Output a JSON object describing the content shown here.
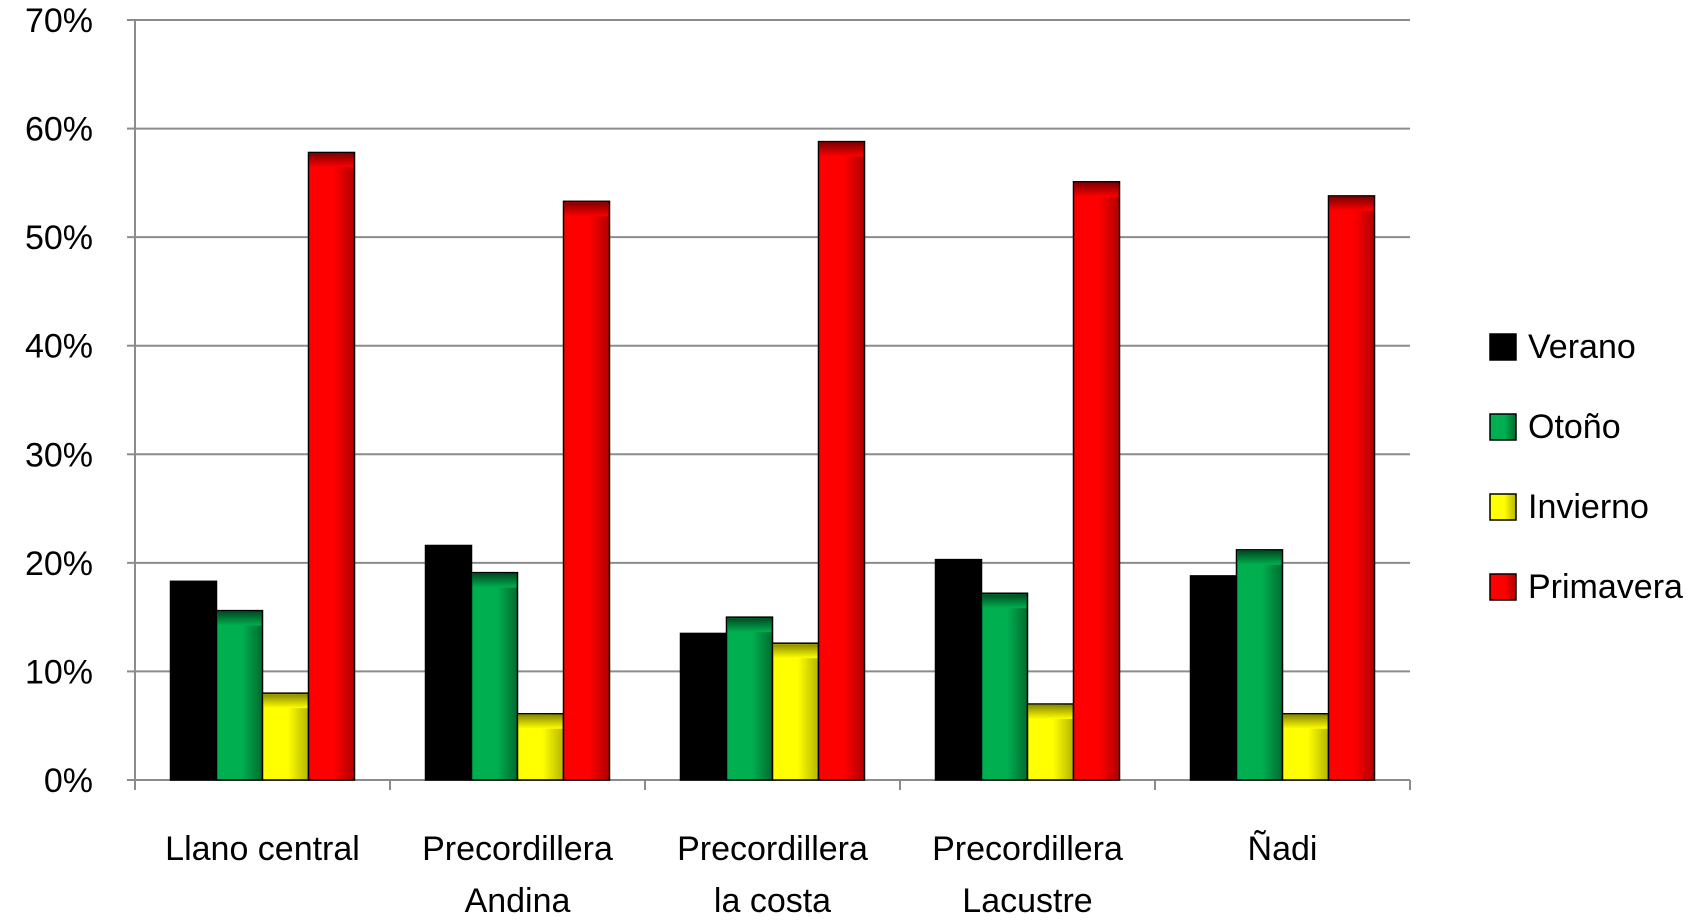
{
  "chart_data": {
    "type": "bar",
    "title": "",
    "xlabel": "",
    "ylabel": "",
    "ylim": [
      0,
      70
    ],
    "yticks": [
      "0%",
      "10%",
      "20%",
      "30%",
      "40%",
      "50%",
      "60%",
      "70%"
    ],
    "ytick_values": [
      0,
      10,
      20,
      30,
      40,
      50,
      60,
      70
    ],
    "grid": true,
    "legend_position": "right",
    "categories": [
      [
        "Llano central"
      ],
      [
        "Precordillera",
        "Andina"
      ],
      [
        "Precordillera",
        "la costa"
      ],
      [
        "Precordillera",
        "Lacustre"
      ],
      [
        "Ñadi"
      ]
    ],
    "series": [
      {
        "name": "Verano",
        "color": "#000000",
        "values": [
          18.3,
          21.6,
          13.5,
          20.3,
          18.8
        ]
      },
      {
        "name": "Otoño",
        "color": "#00b050",
        "values": [
          15.6,
          19.1,
          15.0,
          17.2,
          21.2
        ]
      },
      {
        "name": "Invierno",
        "color": "#ffff00",
        "values": [
          8.0,
          6.1,
          12.6,
          7.0,
          6.1
        ]
      },
      {
        "name": "Primavera",
        "color": "#ff0000",
        "values": [
          57.8,
          53.3,
          58.8,
          55.1,
          53.8
        ]
      }
    ]
  }
}
